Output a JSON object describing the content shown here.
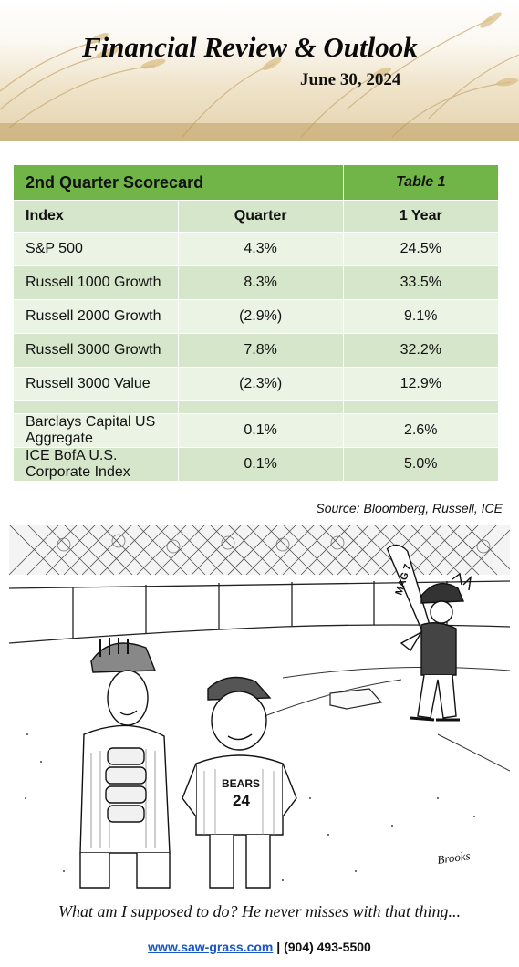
{
  "header": {
    "title": "Financial Review & Outlook",
    "date": "June 30, 2024"
  },
  "scorecard": {
    "title": "2nd Quarter Scorecard",
    "table_label": "Table 1",
    "columns": [
      "Index",
      "Quarter",
      "1 Year"
    ],
    "rows": [
      {
        "index": "S&P 500",
        "quarter": "4.3%",
        "year": "24.5%"
      },
      {
        "index": "Russell 1000 Growth",
        "quarter": "8.3%",
        "year": "33.5%"
      },
      {
        "index": "Russell 2000 Growth",
        "quarter": "(2.9%)",
        "year": "9.1%"
      },
      {
        "index": "Russell 3000 Growth",
        "quarter": "7.8%",
        "year": "32.2%"
      },
      {
        "index": "Russell 3000 Value",
        "quarter": "(2.3%)",
        "year": "12.9%"
      }
    ],
    "bond_rows": [
      {
        "index": "Barclays Capital US Aggregate",
        "quarter": "0.1%",
        "year": "2.6%"
      },
      {
        "index": "ICE BofA U.S. Corporate Index",
        "quarter": "0.1%",
        "year": "5.0%"
      }
    ],
    "source": "Source: Bloomberg, Russell, ICE"
  },
  "cartoon": {
    "bat_text": "MAG 7",
    "jersey_team": "BEARS",
    "jersey_number": "24",
    "signature": "Brooks",
    "caption": "What am I supposed to do? He never misses with that thing..."
  },
  "footer": {
    "link": "www.saw-grass.com",
    "separator": "|",
    "phone": "(904) 493-5500"
  },
  "colors": {
    "header_green": "#71b548",
    "row_dark": "#d6e6cb",
    "row_light": "#ebf3e4",
    "link": "#1a56c4"
  }
}
